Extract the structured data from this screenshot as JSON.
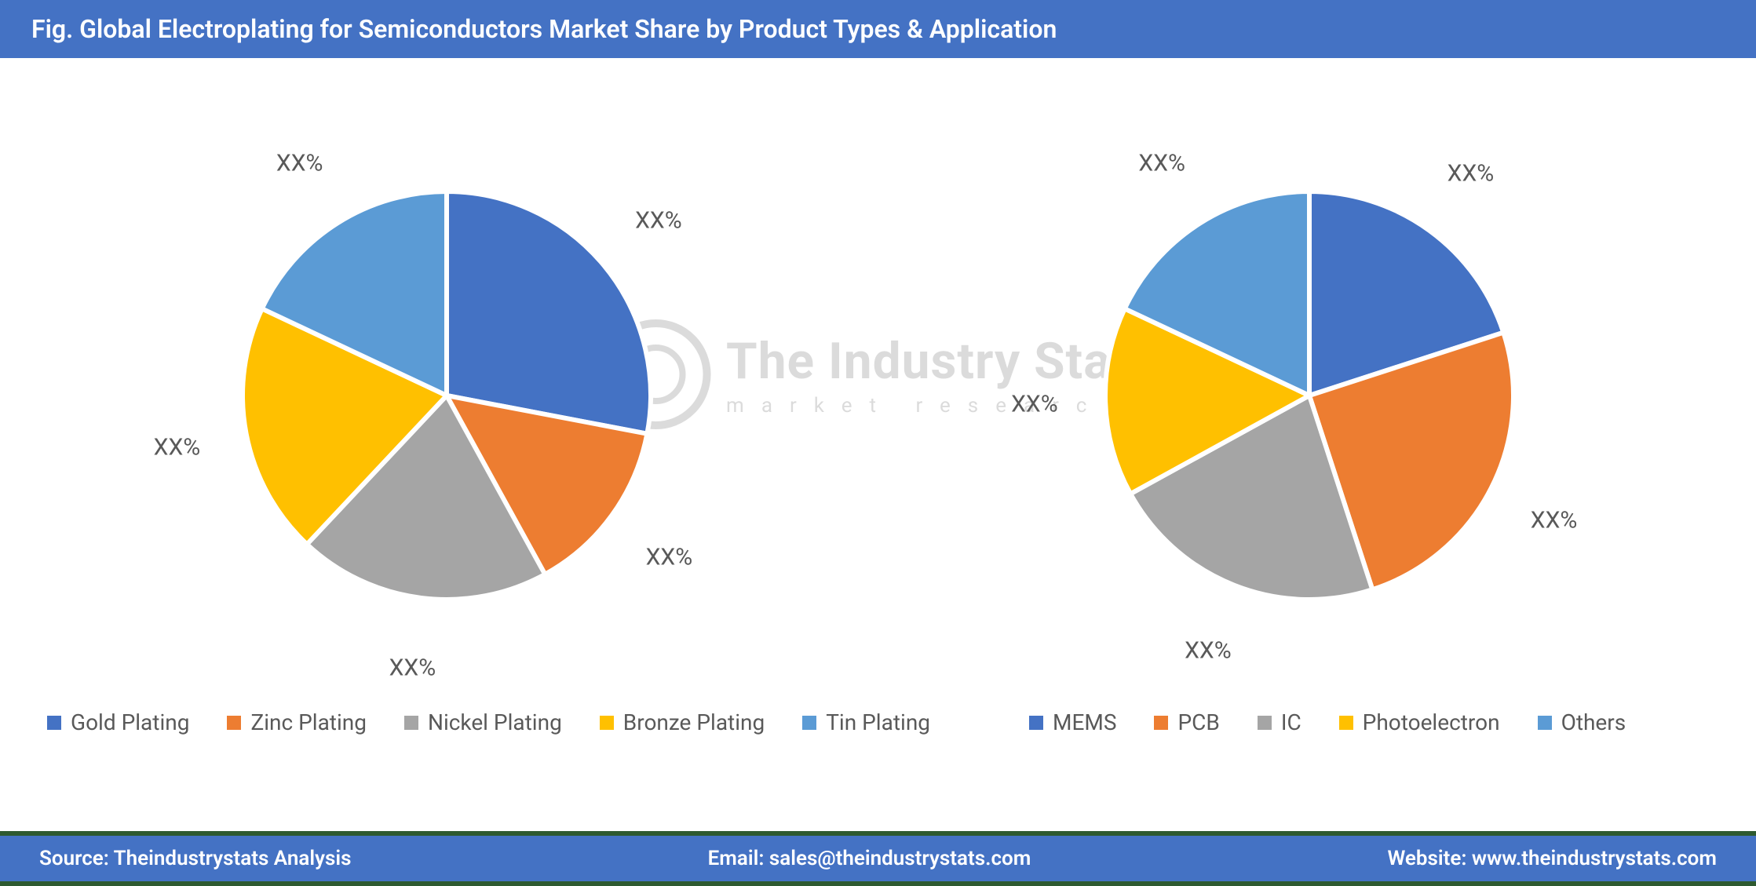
{
  "header": {
    "title": "Fig. Global Electroplating for Semiconductors Market Share by Product Types & Application",
    "bg_color": "#4472c4",
    "text_color": "#ffffff",
    "fontsize": 32
  },
  "palette": {
    "series": [
      "#4472c4",
      "#ed7d31",
      "#a5a5a5",
      "#ffc000",
      "#5b9bd5"
    ],
    "slice_stroke": "#ffffff",
    "slice_stroke_width": 6,
    "label_color": "#595959",
    "label_fontsize": 30,
    "legend_fontsize": 28,
    "background": "#ffffff"
  },
  "charts": [
    {
      "id": "product-types-pie",
      "type": "pie",
      "radius": 260,
      "start_angle_deg": 0,
      "slices": [
        {
          "label": "Gold Plating",
          "value": 28,
          "color": "#4472c4",
          "display": "XX%"
        },
        {
          "label": "Zinc Plating",
          "value": 14,
          "color": "#ed7d31",
          "display": "XX%"
        },
        {
          "label": "Nickel Plating",
          "value": 20,
          "color": "#a5a5a5",
          "display": "XX%"
        },
        {
          "label": "Bronze Plating",
          "value": 20,
          "color": "#ffc000",
          "display": "XX%"
        },
        {
          "label": "Tin Plating",
          "value": 18,
          "color": "#5b9bd5",
          "display": "XX%"
        }
      ]
    },
    {
      "id": "application-pie",
      "type": "pie",
      "radius": 260,
      "start_angle_deg": 0,
      "slices": [
        {
          "label": "MEMS",
          "value": 20,
          "color": "#4472c4",
          "display": "XX%"
        },
        {
          "label": "PCB",
          "value": 25,
          "color": "#ed7d31",
          "display": "XX%"
        },
        {
          "label": "IC",
          "value": 22,
          "color": "#a5a5a5",
          "display": "XX%"
        },
        {
          "label": "Photoelectron",
          "value": 15,
          "color": "#ffc000",
          "display": "XX%"
        },
        {
          "label": "Others",
          "value": 18,
          "color": "#5b9bd5",
          "display": "XX%"
        }
      ]
    }
  ],
  "legends": [
    {
      "items": [
        "Gold Plating",
        "Zinc Plating",
        "Nickel Plating",
        "Bronze Plating",
        "Tin Plating"
      ]
    },
    {
      "items": [
        "MEMS",
        "PCB",
        "IC",
        "Photoelectron",
        "Others"
      ]
    }
  ],
  "watermark": {
    "main": "The Industry Stats",
    "sub": "market research"
  },
  "footer": {
    "bg_color": "#4472c4",
    "accent_color": "#2e5a30",
    "text_color": "#ffffff",
    "source_label": "Source: Theindustrystats Analysis",
    "email_label": "Email: sales@theindustrystats.com",
    "website_label": "Website: www.theindustrystats.com"
  }
}
